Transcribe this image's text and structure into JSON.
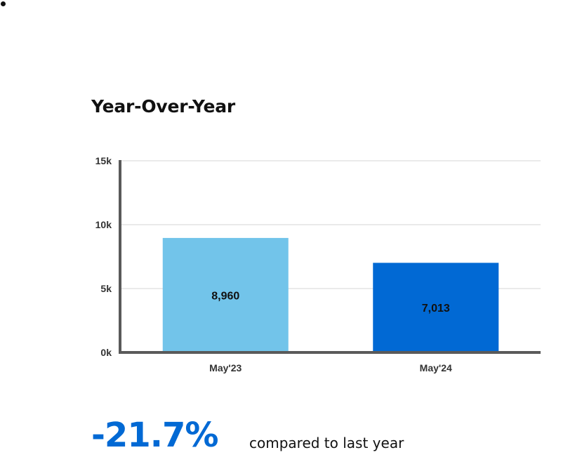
{
  "title": "Year-Over-Year",
  "chart_data": {
    "type": "bar",
    "categories": [
      "May'23",
      "May'24"
    ],
    "values": [
      8960,
      7013
    ],
    "value_labels": [
      "8,960",
      "7,013"
    ],
    "bar_colors": [
      "#72c4ea",
      "#0169d4"
    ],
    "ylim": [
      0,
      15000
    ],
    "yticks": [
      0,
      5000,
      10000,
      15000
    ],
    "ytick_labels": [
      "0k",
      "5k",
      "10k",
      "15k"
    ],
    "xlabel": "",
    "ylabel": "",
    "grid": true
  },
  "summary": {
    "change": "-21.7%",
    "change_color": "#0169d4",
    "text": "compared to last year"
  }
}
